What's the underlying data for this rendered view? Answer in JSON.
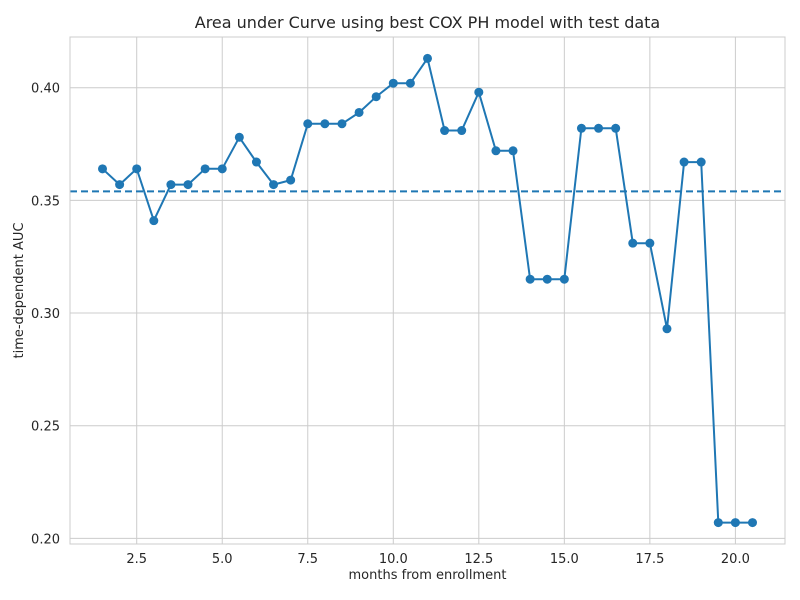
{
  "chart_data": {
    "type": "line",
    "title": "Area under Curve using best COX PH model with test data",
    "xlabel": "months from enrollment",
    "ylabel": "time-dependent AUC",
    "xlim": [
      0.55,
      21.45
    ],
    "ylim": [
      0.1975,
      0.4225
    ],
    "xticks": [
      "2.5",
      "5.0",
      "7.5",
      "10.0",
      "12.5",
      "15.0",
      "17.5",
      "20.0"
    ],
    "yticks": [
      "0.20",
      "0.25",
      "0.30",
      "0.35",
      "0.40"
    ],
    "grid": true,
    "colors": {
      "series": "#1f77b4",
      "grid": "#cccccc",
      "text": "#262626"
    },
    "series": [
      {
        "x": [
          1.5,
          2.0,
          2.5,
          3.0,
          3.5,
          4.0,
          4.5,
          5.0,
          5.5,
          6.0,
          6.5,
          7.0,
          7.5,
          8.0,
          8.5,
          9.0,
          9.5,
          10.0,
          10.5,
          11.0,
          11.5,
          12.0,
          12.5,
          13.0,
          13.5,
          14.0,
          14.5,
          15.0,
          15.5,
          16.0,
          16.5,
          17.0,
          17.5,
          18.0,
          18.5,
          19.0,
          19.5,
          20.0,
          20.5
        ],
        "values": [
          0.364,
          0.357,
          0.364,
          0.341,
          0.357,
          0.357,
          0.364,
          0.364,
          0.378,
          0.367,
          0.357,
          0.359,
          0.384,
          0.384,
          0.384,
          0.389,
          0.396,
          0.402,
          0.402,
          0.413,
          0.381,
          0.381,
          0.398,
          0.372,
          0.372,
          0.315,
          0.315,
          0.315,
          0.382,
          0.382,
          0.382,
          0.331,
          0.331,
          0.293,
          0.367,
          0.367,
          0.207,
          0.207,
          0.207
        ],
        "marker": "circle",
        "style": "solid"
      }
    ],
    "reference_lines": [
      {
        "orientation": "horizontal",
        "y": 0.354,
        "style": "dashed"
      }
    ]
  }
}
